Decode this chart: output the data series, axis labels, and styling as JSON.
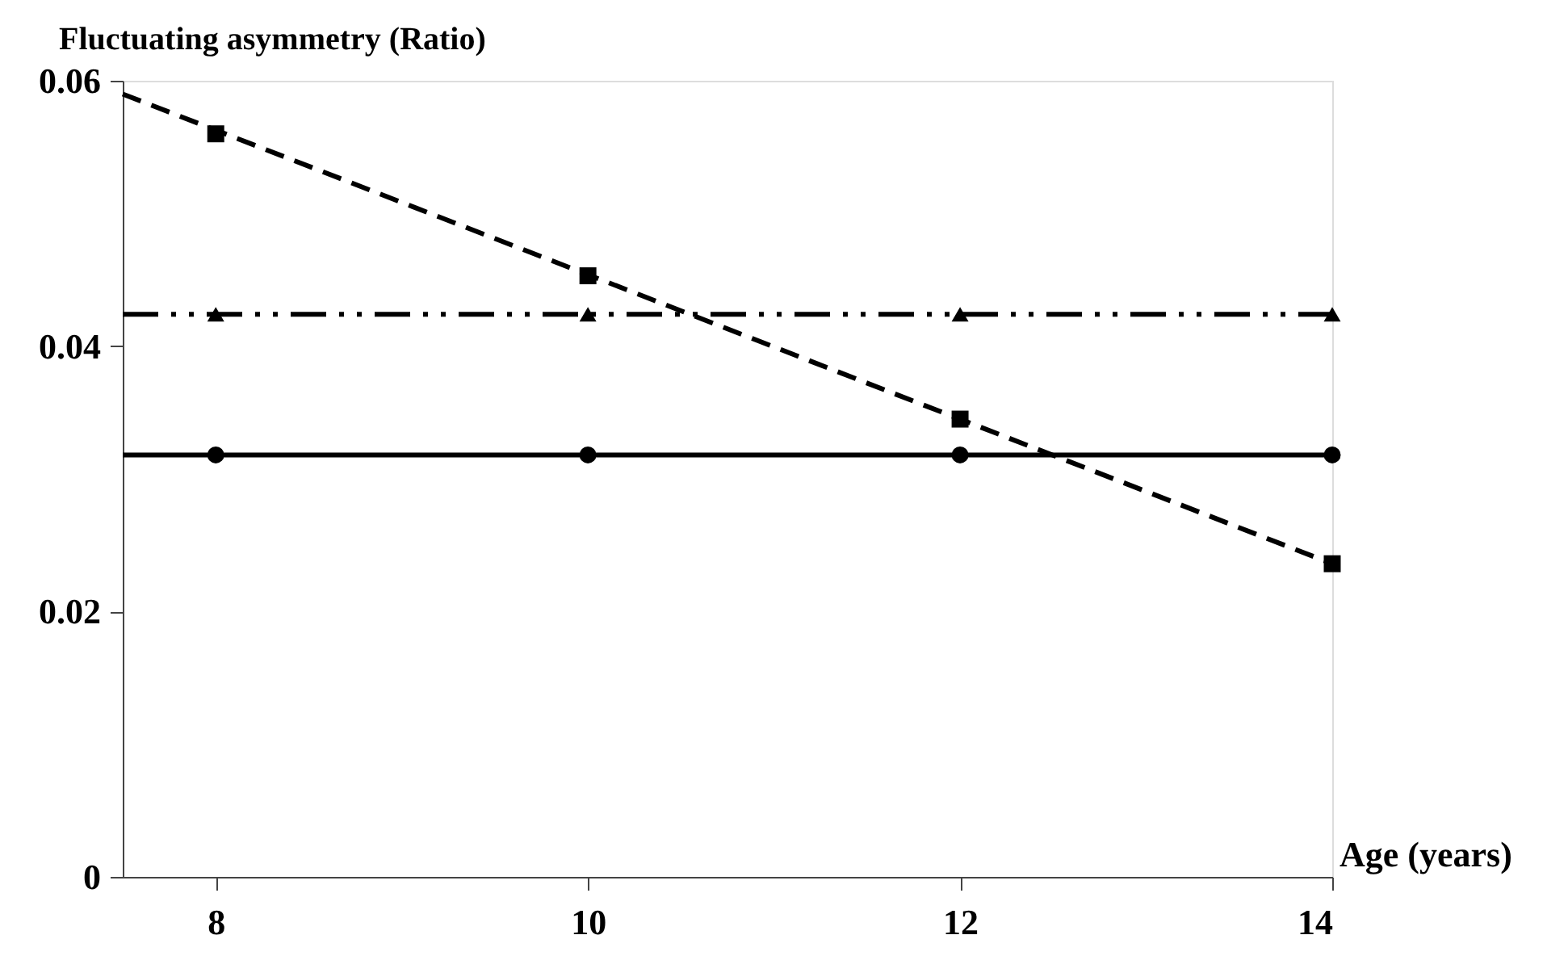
{
  "chart_data": {
    "type": "scatter",
    "ylabel": "Fluctuating asymmetry  (Ratio)",
    "xlabel": "Age (years)",
    "xlim": [
      7.5,
      14
    ],
    "xticks": [
      8,
      10,
      12,
      14
    ],
    "ylim": [
      0,
      0.06
    ],
    "yticks": [
      0,
      0.02,
      0.04,
      0.06
    ],
    "grid": false,
    "series": [
      {
        "marker": "circle",
        "color": "#000000",
        "x": [
          8,
          10,
          12,
          14
        ],
        "values": [
          0.0318,
          0.0318,
          0.0318,
          0.0318
        ]
      },
      {
        "marker": "triangle",
        "color": "#000000",
        "x": [
          8,
          10,
          12,
          14
        ],
        "values": [
          0.0424,
          0.0424,
          0.0424,
          0.0424
        ]
      },
      {
        "marker": "square",
        "color": "#000000",
        "x": [
          8,
          10,
          12,
          14
        ],
        "values": [
          0.056,
          0.0453,
          0.0345,
          0.0236
        ]
      },
      {
        "type": "line",
        "line_style": "solid",
        "color": "#000000",
        "x": [
          7.5,
          14
        ],
        "values": [
          0.0318,
          0.0318
        ]
      },
      {
        "type": "line",
        "line_style": "dashdotdot",
        "color": "#000000",
        "x": [
          7.5,
          14
        ],
        "values": [
          0.0424,
          0.0424
        ]
      },
      {
        "type": "line",
        "line_style": "dashed",
        "color": "#000000",
        "x": [
          7.5,
          14
        ],
        "values": [
          0.059,
          0.0236
        ]
      }
    ]
  }
}
